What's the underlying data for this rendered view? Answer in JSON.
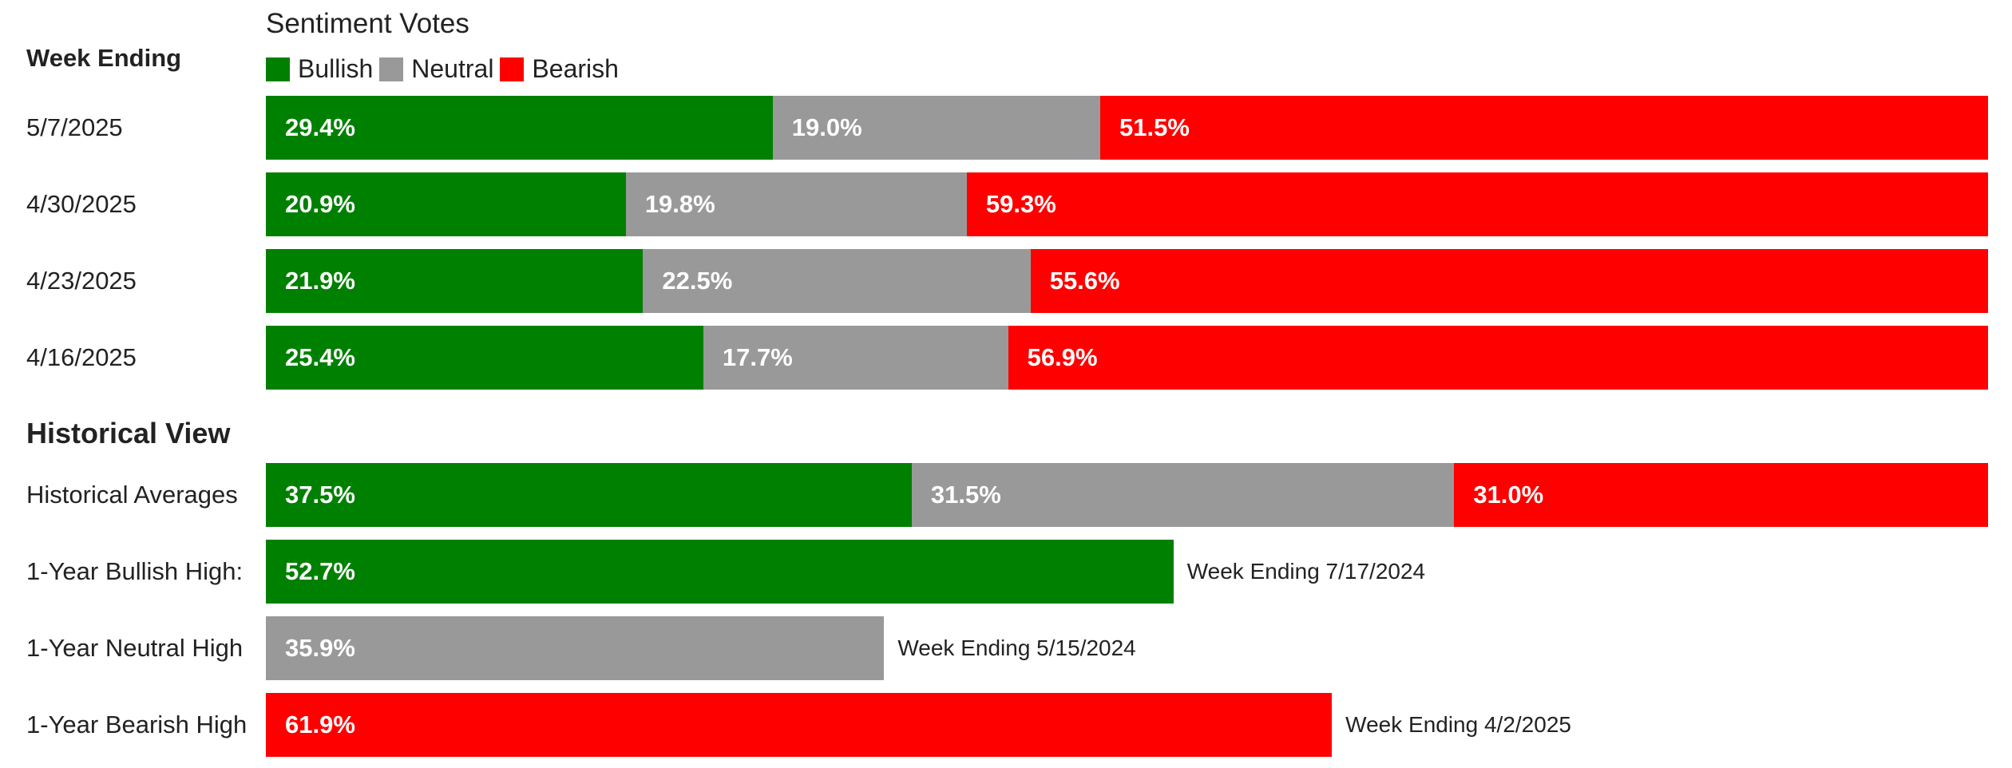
{
  "chart_data": {
    "type": "bar",
    "title": "Sentiment Votes",
    "column_header": "Week Ending",
    "section_header": "Historical View",
    "legend": [
      {
        "name": "Bullish",
        "color": "#008000"
      },
      {
        "name": "Neutral",
        "color": "#999999"
      },
      {
        "name": "Bearish",
        "color": "#ff0000"
      }
    ],
    "weekly": [
      {
        "label": "5/7/2025",
        "bullish": 29.4,
        "neutral": 19.0,
        "bearish": 51.5,
        "bullish_text": "29.4%",
        "neutral_text": "19.0%",
        "bearish_text": "51.5%"
      },
      {
        "label": "4/30/2025",
        "bullish": 20.9,
        "neutral": 19.8,
        "bearish": 59.3,
        "bullish_text": "20.9%",
        "neutral_text": "19.8%",
        "bearish_text": "59.3%"
      },
      {
        "label": "4/23/2025",
        "bullish": 21.9,
        "neutral": 22.5,
        "bearish": 55.6,
        "bullish_text": "21.9%",
        "neutral_text": "22.5%",
        "bearish_text": "55.6%"
      },
      {
        "label": "4/16/2025",
        "bullish": 25.4,
        "neutral": 17.7,
        "bearish": 56.9,
        "bullish_text": "25.4%",
        "neutral_text": "17.7%",
        "bearish_text": "56.9%"
      }
    ],
    "historical_average": {
      "label": "Historical Averages",
      "bullish": 37.5,
      "neutral": 31.5,
      "bearish": 31.0,
      "bullish_text": "37.5%",
      "neutral_text": "31.5%",
      "bearish_text": "31.0%"
    },
    "highs": [
      {
        "label": "1-Year Bullish High:",
        "value": 52.7,
        "value_text": "52.7%",
        "series": "Bullish",
        "note": "Week Ending 7/17/2024"
      },
      {
        "label": "1-Year Neutral High",
        "value": 35.9,
        "value_text": "35.9%",
        "series": "Neutral",
        "note": "Week Ending 5/15/2024"
      },
      {
        "label": "1-Year Bearish High",
        "value": 61.9,
        "value_text": "61.9%",
        "series": "Bearish",
        "note": "Week Ending 4/2/2025"
      }
    ],
    "xlim": [
      0,
      100
    ]
  }
}
